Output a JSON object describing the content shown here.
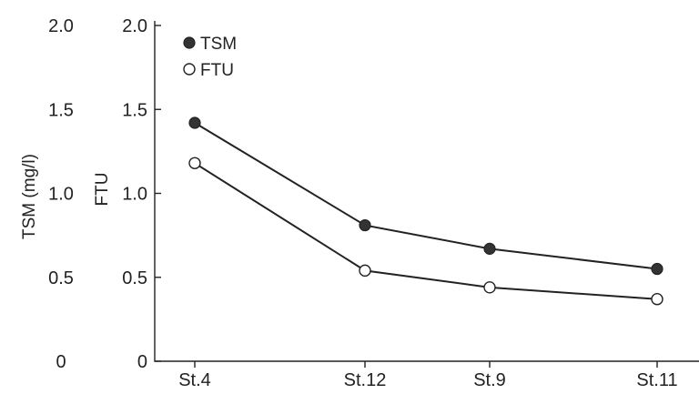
{
  "chart_data": {
    "type": "line",
    "categories": [
      "St.4",
      "St.12",
      "St.9",
      "St.11"
    ],
    "y_left": {
      "label": "TSM (mg/l)",
      "ticks": [
        "2.0",
        "1.5",
        "1.0",
        "0.5",
        "0"
      ],
      "ylim": [
        0,
        2.0
      ]
    },
    "y_right": {
      "label": "FTU",
      "ticks": [
        "2.0",
        "1.5",
        "1.0",
        "0.5",
        "0"
      ],
      "ylim": [
        0,
        2.0
      ]
    },
    "series": [
      {
        "name": "TSM",
        "marker": "filled-circle",
        "values": [
          1.42,
          0.81,
          0.67,
          0.55
        ]
      },
      {
        "name": "FTU",
        "marker": "open-circle",
        "values": [
          1.18,
          0.54,
          0.44,
          0.37
        ]
      }
    ],
    "legend_position": "top-left",
    "grid": false,
    "colors": {
      "line": "#222222",
      "filled_marker": "#333333",
      "open_marker_fill": "#ffffff"
    }
  }
}
